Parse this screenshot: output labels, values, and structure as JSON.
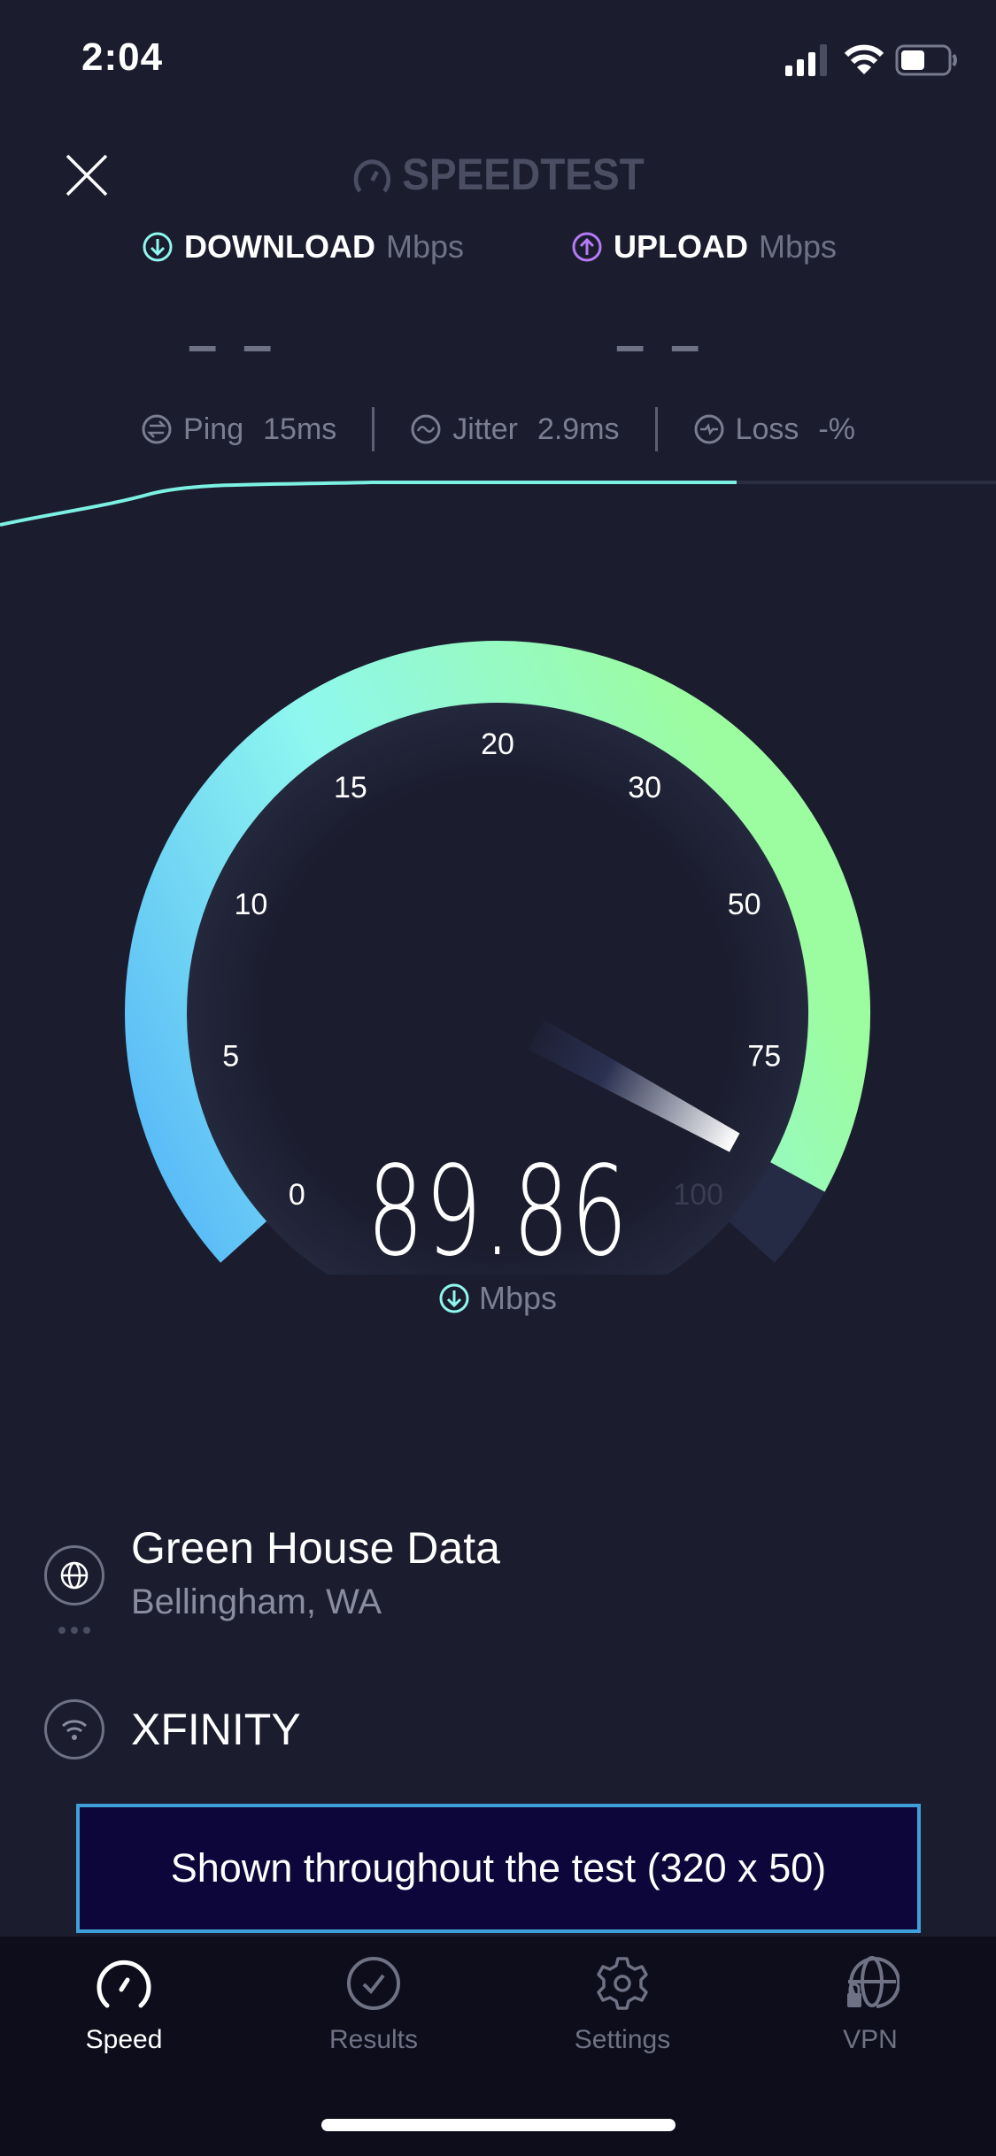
{
  "status_bar": {
    "time": "2:04",
    "icons": [
      "cellular-signal-icon",
      "wifi-icon",
      "battery-icon"
    ]
  },
  "header": {
    "close_icon": "close-icon",
    "logo_text": "SPEEDTEST"
  },
  "download": {
    "label": "DOWNLOAD",
    "unit": "Mbps",
    "value": "– –",
    "color": "#8ff7ef"
  },
  "upload": {
    "label": "UPLOAD",
    "unit": "Mbps",
    "value": "– –",
    "color": "#b57bf7"
  },
  "metrics": {
    "ping": {
      "label": "Ping",
      "value": "15",
      "unit": "ms"
    },
    "jitter": {
      "label": "Jitter",
      "value": "2.9",
      "unit": "ms"
    },
    "loss": {
      "label": "Loss",
      "value": "-%"
    }
  },
  "gauge": {
    "ticks": [
      "0",
      "5",
      "10",
      "15",
      "20",
      "30",
      "50",
      "75",
      "100"
    ],
    "tick_values": [
      0,
      5,
      10,
      15,
      20,
      30,
      50,
      75,
      100
    ],
    "value": 89.86,
    "value_text": "89.86",
    "unit": "Mbps",
    "colors": {
      "start": "#55b6f8",
      "mid": "#8ff7ef",
      "end": "#9cfca0",
      "track": "#252a45"
    }
  },
  "server": {
    "name": "Green House Data",
    "location": "Bellingham, WA"
  },
  "isp": {
    "name": "XFINITY"
  },
  "ad": {
    "text": "Shown throughout the test (320 x 50)"
  },
  "tabs": [
    {
      "label": "Speed",
      "icon": "speedometer-icon",
      "active": true
    },
    {
      "label": "Results",
      "icon": "check-circle-icon",
      "active": false
    },
    {
      "label": "Settings",
      "icon": "gear-icon",
      "active": false
    },
    {
      "label": "VPN",
      "icon": "globe-lock-icon",
      "active": false
    }
  ]
}
